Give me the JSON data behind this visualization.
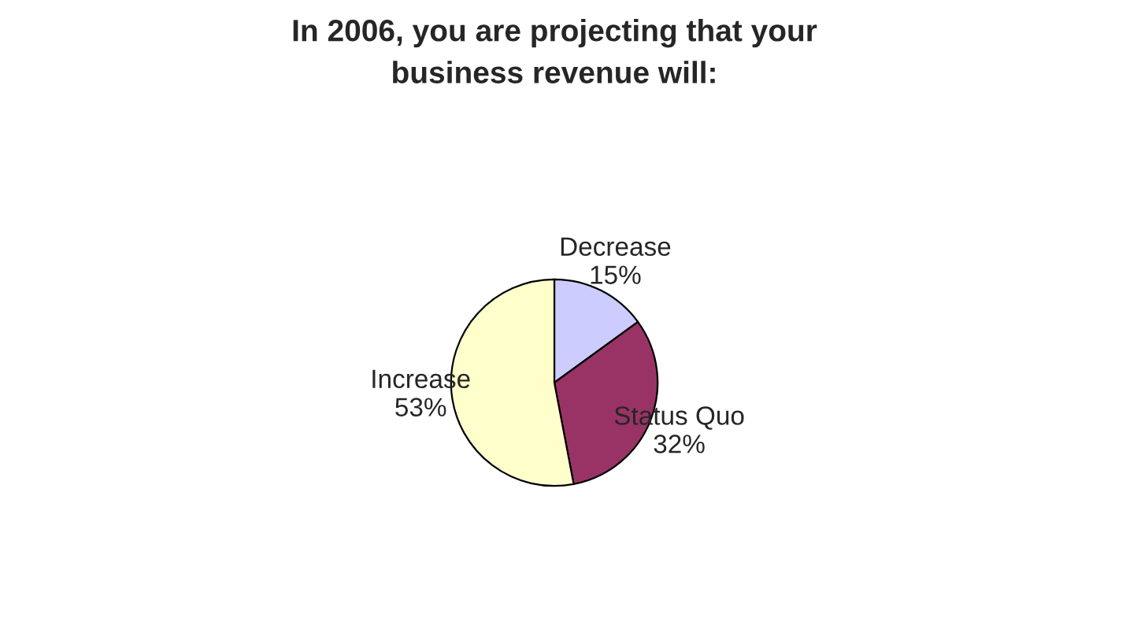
{
  "chart_data": {
    "type": "pie",
    "title": "In 2006, you are projecting that your\nbusiness revenue will:",
    "categories": [
      "Decrease",
      "Status Quo",
      "Increase"
    ],
    "values": [
      15,
      32,
      53
    ],
    "value_labels": [
      "15%",
      "32%",
      "53%"
    ],
    "colors": [
      "#ccccff",
      "#993366",
      "#ffffcc"
    ]
  }
}
